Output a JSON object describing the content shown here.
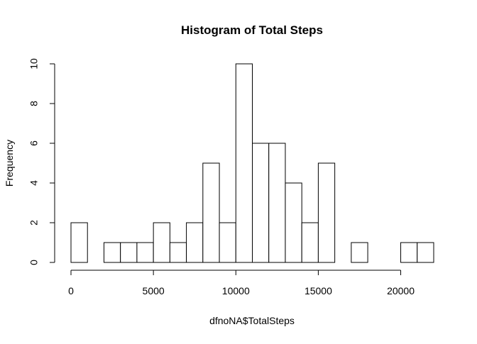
{
  "chart_data": {
    "type": "bar",
    "title": "Histogram of Total Steps",
    "xlabel": "dfnoNA$TotalSteps",
    "ylabel": "Frequency",
    "bins": [
      {
        "start": 0,
        "end": 1000,
        "count": 2
      },
      {
        "start": 1000,
        "end": 2000,
        "count": 0
      },
      {
        "start": 2000,
        "end": 3000,
        "count": 1
      },
      {
        "start": 3000,
        "end": 4000,
        "count": 1
      },
      {
        "start": 4000,
        "end": 5000,
        "count": 1
      },
      {
        "start": 5000,
        "end": 6000,
        "count": 2
      },
      {
        "start": 6000,
        "end": 7000,
        "count": 1
      },
      {
        "start": 7000,
        "end": 8000,
        "count": 2
      },
      {
        "start": 8000,
        "end": 9000,
        "count": 5
      },
      {
        "start": 9000,
        "end": 10000,
        "count": 2
      },
      {
        "start": 10000,
        "end": 11000,
        "count": 10
      },
      {
        "start": 11000,
        "end": 12000,
        "count": 6
      },
      {
        "start": 12000,
        "end": 13000,
        "count": 6
      },
      {
        "start": 13000,
        "end": 14000,
        "count": 4
      },
      {
        "start": 14000,
        "end": 15000,
        "count": 2
      },
      {
        "start": 15000,
        "end": 16000,
        "count": 5
      },
      {
        "start": 16000,
        "end": 17000,
        "count": 0
      },
      {
        "start": 17000,
        "end": 18000,
        "count": 1
      },
      {
        "start": 18000,
        "end": 19000,
        "count": 0
      },
      {
        "start": 19000,
        "end": 20000,
        "count": 0
      },
      {
        "start": 20000,
        "end": 21000,
        "count": 1
      },
      {
        "start": 21000,
        "end": 22000,
        "count": 1
      }
    ],
    "xticks": [
      0,
      5000,
      10000,
      15000,
      20000
    ],
    "xtick_labels": [
      "0",
      "5000",
      "10000",
      "15000",
      "20000"
    ],
    "yticks": [
      0,
      2,
      4,
      6,
      8,
      10
    ],
    "ytick_labels": [
      "0",
      "2",
      "4",
      "6",
      "8",
      "10"
    ],
    "xlim": [
      0,
      22000
    ],
    "ylim": [
      0,
      10
    ],
    "grid": false,
    "legend": "none",
    "bar_fill": "#ffffff",
    "bar_stroke": "#000000"
  }
}
